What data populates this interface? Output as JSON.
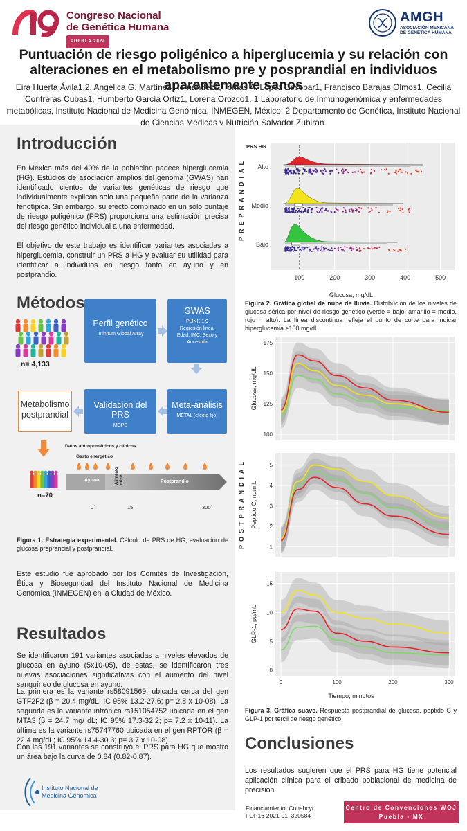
{
  "header": {
    "logo_text": "49",
    "congress_line1": "Congreso Nacional",
    "congress_line2": "de Genética Humana",
    "congress_sub": "PUEBLA 2024",
    "society_acronym": "AMGH",
    "society_name_line1": "ASOCIACIÓN MEXICANA",
    "society_name_line2": "DE GENÉTICA HUMANA"
  },
  "title": "Puntuación de riesgo poligénico a hiperglucemia y su relación con alteraciones en el metabolismo pre y posprandial en individuos aparentemente sanos",
  "authors": "Eira Huerta Ávila1,2, Angélica G. Martínez Hernández1, Tomas A. López Escobar1, Francisco Barajas Olmos1, Cecilia Contreras Cubas1, Humberto García Ortiz1, Lorena Orozco1. 1 Laboratorio de Inmunogenómica y enfermedades metabólicas, Instituto Nacional de Medicina Genómica, INMEGEN, México. 2 Departamento de Genética, Instituto Nacional de Ciencias Médicas y Nutrición Salvador Zubirán.",
  "intro": {
    "heading": "Introducción",
    "p1": "En México más del 40% de la población padece hiperglucemia (HG). Estudios de asociación amplios del genoma (GWAS) han identificado cientos de variantes genéticas de riesgo que individualmente explican solo una pequeña parte de la varianza fenotípica. Sin embargo, su efecto combinado en un solo puntaje de riesgo poligénico (PRS) proporciona una estimación precisa del riesgo genético individual a una enfermedad.",
    "p2": "El objetivo de este trabajo es identificar variantes asociadas a hiperglucemia, construir un PRS a HG y evaluar su utilidad para identificar a individuos en riesgo tanto en ayuno y en postprandio."
  },
  "methods": {
    "heading": "Métodos",
    "n_total": "n= 4,133",
    "box_perfil": {
      "title": "Perfil genético",
      "sub": "Infinitum Global Array"
    },
    "box_gwas": {
      "title": "GWAS",
      "sub": "PLINK 1.9\nRegresión lineal\nEdad, IMC, Sexo y Ancestría"
    },
    "box_meta": {
      "title": "Meta-análisis",
      "sub": "METAL (efecto fijo)"
    },
    "box_valid": {
      "title": "Validacion del PRS",
      "sub": "MCPS"
    },
    "box_post": "Metabolismo postprandial",
    "n_sub": "n=70",
    "timeline": {
      "datos": "Datos antropométricos y clínicos",
      "gasto": "Gasto energético",
      "ayuno": "Ayuno",
      "alimento": "Alimento mixto",
      "postprandio": "Postprandio",
      "t0": "0´",
      "t15": "15´",
      "t300": "300´"
    },
    "fig1_caption_bold": "Figura 1. Estrategia experimental.",
    "fig1_caption": " Cálculo de PRS de HG, evaluación de glucosa preprancial y postprandial.",
    "ethics": "Este estudio fue aprobado por los Comités de Investigación, Ética y Bioseguridad del Instituto Nacional de Medicina Genómica (INMEGEN) en la Ciudad de México."
  },
  "results": {
    "heading": "Resultados",
    "p1": "Se identificaron 191 variantes asociadas a niveles elevados de glucosa en ayuno (5x10-05), de estas, se identificaron tres nuevas asociaciones significativas con el aumento del nivel sanguíneo de glucosa en ayuno.",
    "p2": "La primera es la variante rs58091569, ubicada cerca del gen GTF2F2 (β = 20.4 mg/dL; IC 95% 13.2-27.6; p= 2.8 x 10-08). La segunda es la variante intrónica rs151054752 ubicada en el gen MTA3 (β = 24.7 mg/ dL; IC 95% 17.3-32.2; p= 7.2 x 10-11). La última es la variante rs75747760 ubicada en el gen RPTOR (β = 22.4 mg/dL; IC 95% 14.4-30.3; p= 3.7 x 10-08).",
    "p3": "Con las 191 variantes se construyó el PRS para HG que mostró un área bajo la curva de 0.84 (0.82-0.87)."
  },
  "fig2": {
    "side_label": "PREPRANDIAL",
    "legend_title": "PRS HG",
    "groups": [
      "Alto",
      "Medio",
      "Bajo"
    ],
    "xlabel": "Glucosa, mg/dL",
    "xticks": [
      "100",
      "200",
      "300",
      "400",
      "500"
    ],
    "caption_bold": "Figura 2. Gráfica global de nube de lluvia.",
    "caption": " Distribución de los niveles de glucosa sérica por nivel de riesgo genético (verde = bajo, amarillo = medio, rojo = alto). La línea discontinua refleja el punto de corte para indicar hiperglucemia ≥100 mg/dL.",
    "colors": {
      "alto": "#e0262a",
      "medio": "#f2e41a",
      "bajo": "#35c440"
    }
  },
  "fig3": {
    "side_label": "POSTPRANDIAL",
    "panels": [
      {
        "ylabel": "Glucosa, mg/dL",
        "yticks": [
          "100",
          "125",
          "150",
          "175"
        ]
      },
      {
        "ylabel": "Peptido C, ng/mL",
        "yticks": [
          "1",
          "2",
          "3",
          "4",
          "5"
        ]
      },
      {
        "ylabel": "GLP-1, pg/mL",
        "yticks": [
          "0",
          "5",
          "10",
          "15"
        ]
      }
    ],
    "xticks": [
      "0",
      "100",
      "200",
      "300"
    ],
    "xlabel": "Tiempo, minutos",
    "caption_bold": "Figura 3. Gráfica suave.",
    "caption": " Respuesta postprandial de glucosa, peptido C y GLP-1 por tercil de riesgo genético."
  },
  "conclusions": {
    "heading": "Conclusiones",
    "text": "Los resultados sugieren que el PRS para HG tiene potencial aplicación clínica para el cribado poblacional de medicina de precisión."
  },
  "footer": {
    "inmegen_line1": "Instituto Nacional de",
    "inmegen_line2": "Medicina Genómica",
    "funding1": "Financiamiento: Conahcyt",
    "funding2": "FOP16-2021-01_320584",
    "venue1": "Centro de Convenciones WOJ",
    "venue2": "Puebla - MX"
  }
}
